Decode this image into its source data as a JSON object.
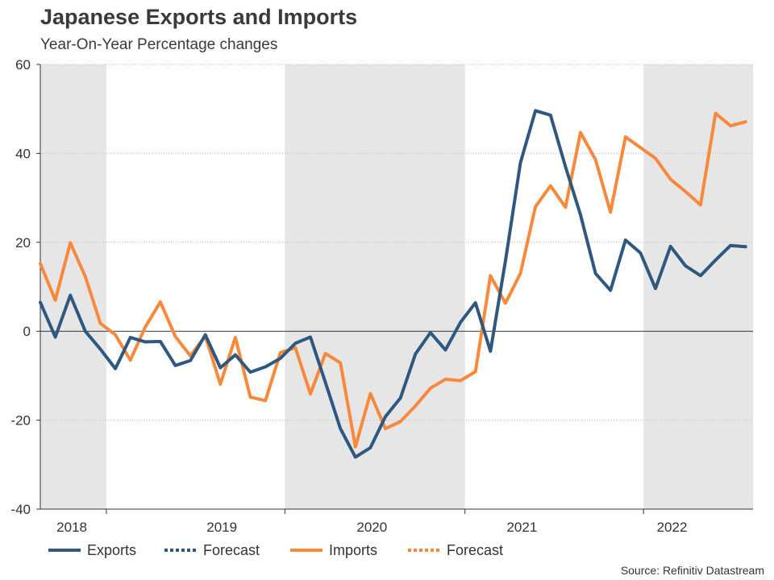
{
  "header": {
    "title": "Japanese Exports and Imports",
    "subtitle": "Year-On-Year Percentage changes"
  },
  "source": "Source: Refinitiv Datastream",
  "colors": {
    "exports": "#2f5880",
    "imports": "#f7883c",
    "shade": "#e6e6e6",
    "grid": "#bbbbbb",
    "axis": "#333333"
  },
  "chart_data": {
    "type": "line",
    "title": "Japanese Exports and Imports",
    "subtitle": "Year-On-Year Percentage changes",
    "ylim": [
      -40,
      60
    ],
    "yticks": [
      -40,
      -20,
      0,
      20,
      40,
      60
    ],
    "xlim": [
      2017.79,
      2022.54
    ],
    "year_labels": [
      {
        "label": "2018",
        "at": 2018.0
      },
      {
        "label": "2019",
        "at": 2019.0
      },
      {
        "label": "2020",
        "at": 2020.0
      },
      {
        "label": "2021",
        "at": 2021.0
      },
      {
        "label": "2022",
        "at": 2022.0
      }
    ],
    "year_ticks": [
      2018.23,
      2019.42,
      2020.62,
      2021.81
    ],
    "shaded_periods": [
      [
        2017.79,
        2018.23
      ],
      [
        2019.42,
        2020.62
      ],
      [
        2021.81,
        2022.54
      ]
    ],
    "grid": true,
    "legend": [
      {
        "label": "Exports",
        "series": "exports",
        "style": "solid"
      },
      {
        "label": "Forecast",
        "series": "exports",
        "style": "dotted"
      },
      {
        "label": "Imports",
        "series": "imports",
        "style": "solid"
      },
      {
        "label": "Forecast",
        "series": "imports",
        "style": "dotted"
      }
    ],
    "legend_position": "bottom",
    "series": [
      {
        "name": "Exports",
        "key": "exports",
        "x": [
          2017.79,
          2017.89,
          2017.99,
          2018.09,
          2018.19,
          2018.29,
          2018.39,
          2018.49,
          2018.59,
          2018.69,
          2018.79,
          2018.89,
          2018.99,
          2019.09,
          2019.19,
          2019.29,
          2019.39,
          2019.49,
          2019.59,
          2019.69,
          2019.79,
          2019.89,
          2019.99,
          2020.09,
          2020.19,
          2020.29,
          2020.39,
          2020.49,
          2020.59,
          2020.69,
          2020.79,
          2020.89,
          2020.99,
          2021.09,
          2021.19,
          2021.29,
          2021.39,
          2021.49,
          2021.59,
          2021.69,
          2021.79,
          2021.89,
          2021.99,
          2022.09,
          2022.19,
          2022.29,
          2022.39,
          2022.49
        ],
        "values": [
          6.5,
          -1.3,
          8.1,
          0.0,
          -4.0,
          -8.4,
          -1.4,
          -2.4,
          -2.3,
          -7.7,
          -6.6,
          -0.8,
          -8.2,
          -5.3,
          -9.2,
          -8.0,
          -6.1,
          -2.7,
          -1.3,
          -11.5,
          -21.9,
          -28.3,
          -26.2,
          -19.2,
          -15.0,
          -5.1,
          -0.3,
          -4.2,
          2.0,
          6.4,
          -4.5,
          15.8,
          37.9,
          49.6,
          48.6,
          37.0,
          26.2,
          13.0,
          9.2,
          20.5,
          17.6,
          9.6,
          19.1,
          14.7,
          12.5,
          16.0,
          19.3,
          19.0
        ]
      },
      {
        "name": "Imports",
        "key": "imports",
        "x": [
          2017.79,
          2017.89,
          2017.99,
          2018.09,
          2018.19,
          2018.29,
          2018.39,
          2018.49,
          2018.59,
          2018.69,
          2018.79,
          2018.89,
          2018.99,
          2019.09,
          2019.19,
          2019.29,
          2019.39,
          2019.49,
          2019.59,
          2019.69,
          2019.79,
          2019.89,
          2019.99,
          2020.09,
          2020.19,
          2020.29,
          2020.39,
          2020.49,
          2020.59,
          2020.69,
          2020.79,
          2020.89,
          2020.99,
          2021.09,
          2021.19,
          2021.29,
          2021.39,
          2021.49,
          2021.59,
          2021.69,
          2021.79,
          2021.89,
          2021.99,
          2022.09,
          2022.19,
          2022.29,
          2022.39,
          2022.49
        ],
        "values": [
          15.2,
          7.0,
          19.9,
          12.3,
          1.8,
          -0.8,
          -6.5,
          1.0,
          6.6,
          -1.2,
          -5.5,
          -1.1,
          -11.9,
          -1.4,
          -14.8,
          -15.6,
          -4.8,
          -3.7,
          -14.1,
          -5.0,
          -7.1,
          -26.0,
          -14.0,
          -21.9,
          -20.3,
          -16.8,
          -12.8,
          -10.8,
          -11.1,
          -9.1,
          12.5,
          6.3,
          13.0,
          28.0,
          32.7,
          27.9,
          44.7,
          38.6,
          26.8,
          43.7,
          41.3,
          38.9,
          34.2,
          31.4,
          28.4,
          49.0,
          46.2,
          47.1
        ]
      }
    ]
  }
}
